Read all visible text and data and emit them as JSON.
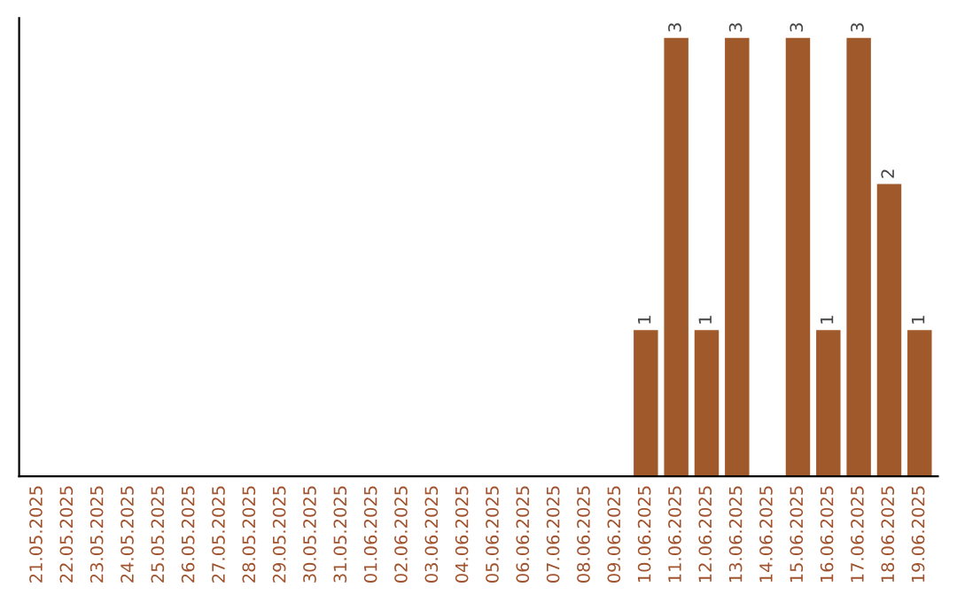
{
  "chart_data": {
    "type": "bar",
    "categories": [
      "21.05.2025",
      "22.05.2025",
      "23.05.2025",
      "24.05.2025",
      "25.05.2025",
      "26.05.2025",
      "27.05.2025",
      "28.05.2025",
      "29.05.2025",
      "30.05.2025",
      "31.05.2025",
      "01.06.2025",
      "02.06.2025",
      "03.06.2025",
      "04.06.2025",
      "05.06.2025",
      "06.06.2025",
      "07.06.2025",
      "08.06.2025",
      "09.06.2025",
      "10.06.2025",
      "11.06.2025",
      "12.06.2025",
      "13.06.2025",
      "14.06.2025",
      "15.06.2025",
      "16.06.2025",
      "17.06.2025",
      "18.06.2025",
      "19.06.2025"
    ],
    "values": [
      null,
      null,
      null,
      null,
      null,
      null,
      null,
      null,
      null,
      null,
      null,
      null,
      null,
      null,
      null,
      null,
      null,
      null,
      null,
      null,
      1,
      3,
      1,
      3,
      null,
      3,
      1,
      3,
      2,
      1
    ],
    "data_labels": true,
    "color": "#a0592a",
    "tick_labels": "x",
    "grid": false
  }
}
